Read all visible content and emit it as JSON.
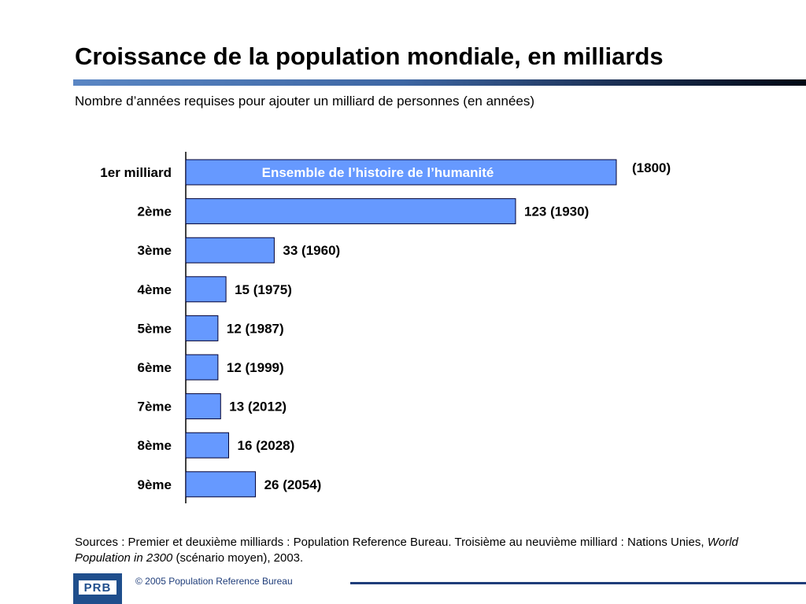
{
  "slide": {
    "title": "Croissance de la population mondiale, en milliards",
    "subtitle": "Nombre d’années requises pour ajouter un milliard de personnes (en années)",
    "source_prefix": "Sources : Premier et deuxième milliards : Population Reference Bureau. Troisième au neuvième milliard : Nations Unies, ",
    "source_italic": "World Population in 2300",
    "source_suffix": " (scénario moyen), 2003.",
    "logo_text": "PRB",
    "copyright": "© 2005 Population Reference Bureau"
  },
  "colors": {
    "bar_fill": "#6699ff",
    "bar_stroke": "#000033",
    "axis": "#000000",
    "footer_accent": "#1f3d7a"
  },
  "chart_data": {
    "type": "bar",
    "orientation": "horizontal",
    "categories": [
      "1er milliard",
      "2ème",
      "3ème",
      "4ème",
      "5ème",
      "6ème",
      "7ème",
      "8ème",
      "9ème"
    ],
    "values": [
      null,
      123,
      33,
      15,
      12,
      12,
      13,
      16,
      26
    ],
    "years": [
      1800,
      1930,
      1960,
      1975,
      1987,
      1999,
      2012,
      2028,
      2054
    ],
    "data_labels": [
      "(1800)",
      "123 (1930)",
      "33 (1960)",
      "15 (1975)",
      "12 (1987)",
      "12 (1999)",
      "13 (2012)",
      "16 (2028)",
      "26 (2054)"
    ],
    "first_bar_label": "Ensemble de l’histoire de l’humanité",
    "first_bar_extends_to_full_width": true,
    "xlim": [
      0,
      123
    ],
    "title": "",
    "xlabel": "",
    "ylabel": "",
    "grid": false,
    "legend": "none"
  }
}
